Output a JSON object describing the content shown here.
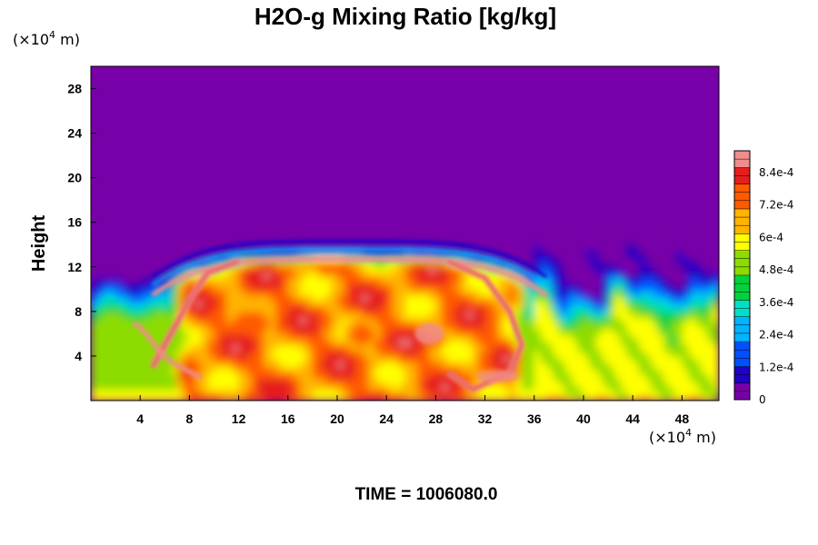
{
  "chart_data": {
    "type": "heatmap",
    "title": "H2O-g Mixing Ratio [kg/kg]",
    "ylabel": "Height",
    "xlabel": "",
    "x_unit": {
      "prefix": "(×10",
      "exp": "4",
      "suffix": " m)"
    },
    "y_unit": {
      "prefix": "(×10",
      "exp": "4",
      "suffix": " m)"
    },
    "xlim": [
      0,
      51
    ],
    "ylim": [
      0,
      30
    ],
    "x_ticks": [
      4,
      8,
      12,
      16,
      20,
      24,
      28,
      32,
      36,
      40,
      44,
      48
    ],
    "y_ticks": [
      4,
      8,
      12,
      16,
      20,
      24,
      28
    ],
    "colorbar": {
      "min": 0,
      "max": 0.00092,
      "tick_values": [
        0,
        0.00012,
        0.00024,
        0.00036,
        0.00048,
        0.0006,
        0.00072,
        0.00084
      ],
      "tick_labels": [
        "0",
        "1.2e-4",
        "2.4e-4",
        "3.6e-4",
        "4.8e-4",
        "6e-4",
        "7.2e-4",
        "8.4e-4"
      ]
    },
    "field_summary": {
      "background_value": 0,
      "moist_layer_top_height": 11,
      "cloud_region_x": [
        6,
        36
      ],
      "cloud_region_top_height": 14,
      "max_value_region": "outline of cloud region near x 6-36, heights 1-12"
    },
    "time_label": "TIME = 1006080.0"
  },
  "colors": {
    "background": "#7800a8",
    "colormap": [
      "#7800a8",
      "#1e00c8",
      "#0050ff",
      "#00b4ff",
      "#00e0c8",
      "#00d23c",
      "#8cdc00",
      "#ffff00",
      "#ffb400",
      "#ff5a00",
      "#e61e1e",
      "#f08c8c"
    ]
  }
}
